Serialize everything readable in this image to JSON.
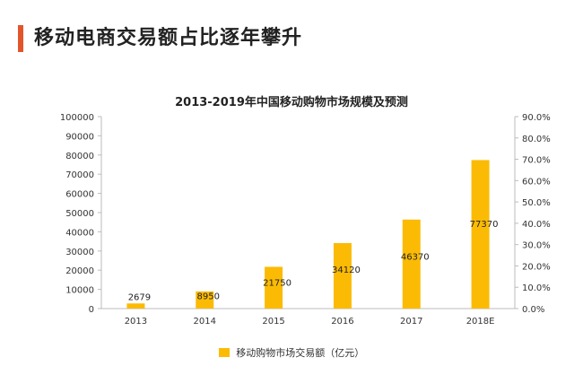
{
  "heading": "移动电商交易额占比逐年攀升",
  "chart_data": {
    "type": "bar",
    "title": "2013-2019年中国移动购物市场规模及预测",
    "categories": [
      "2013",
      "2014",
      "2015",
      "2016",
      "2017",
      "2018E"
    ],
    "series": [
      {
        "name": "移动购物市场交易额（亿元）",
        "values": [
          2679,
          8950,
          21750,
          34120,
          46370,
          77370
        ],
        "color": "#fbbb05"
      }
    ],
    "data_labels": [
      "2679",
      "8950",
      "21750",
      "34120",
      "46370",
      "77370"
    ],
    "ylim": [
      0,
      100000
    ],
    "y_ticks": [
      "0",
      "10000",
      "20000",
      "30000",
      "40000",
      "50000",
      "60000",
      "70000",
      "80000",
      "90000",
      "100000"
    ],
    "y2lim": [
      0,
      90
    ],
    "y2_ticks": [
      "0.0%",
      "10.0%",
      "20.0%",
      "30.0%",
      "40.0%",
      "50.0%",
      "60.0%",
      "70.0%",
      "80.0%",
      "90.0%"
    ],
    "grid": false,
    "legend_position": "bottom"
  },
  "legend": {
    "label": "移动购物市场交易额（亿元）",
    "color": "#fbbb05"
  },
  "colors": {
    "accent": "#e2552c",
    "bar": "#fbbb05"
  }
}
